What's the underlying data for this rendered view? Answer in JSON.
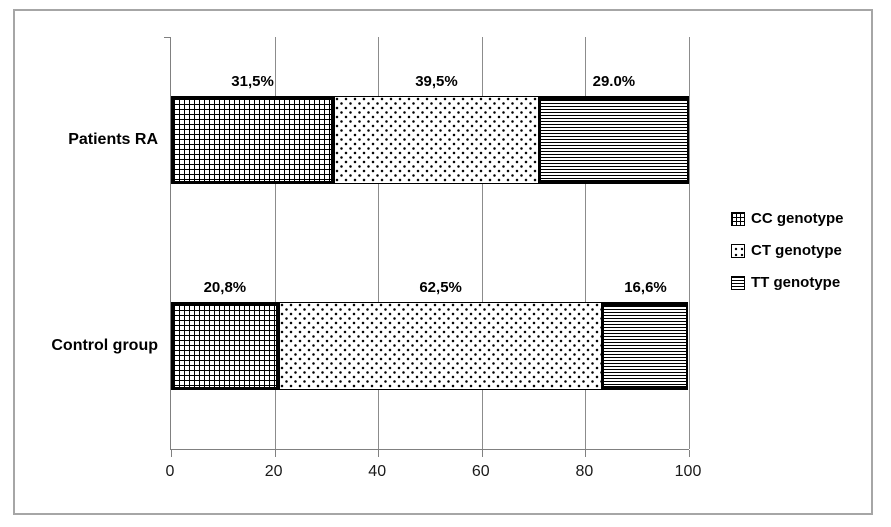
{
  "chart_data": {
    "type": "bar",
    "orientation": "horizontal",
    "stacked": true,
    "title": "",
    "xlabel": "",
    "ylabel": "",
    "categories": [
      "Patients RA",
      "Control group"
    ],
    "series": [
      {
        "name": "CC genotype",
        "pattern": "grid-crosshatch",
        "values": [
          31.5,
          20.8
        ],
        "labels": [
          "31,5%",
          "20,8%"
        ]
      },
      {
        "name": "CT genotype",
        "pattern": "dotted-diamond",
        "values": [
          39.5,
          62.5
        ],
        "labels": [
          "39,5%",
          "62,5%"
        ]
      },
      {
        "name": "TT genotype",
        "pattern": "horizontal-lines",
        "values": [
          29.0,
          16.6
        ],
        "labels": [
          "29.0%",
          "16,6%"
        ]
      }
    ],
    "xlim": [
      0,
      100
    ],
    "x_ticks": [
      "0",
      "20",
      "40",
      "60",
      "80",
      "100"
    ],
    "grid": true,
    "legend_position": "right"
  },
  "colors": {
    "background": "#ffffff",
    "pattern_foreground": "#000000",
    "gridline": "#8c8c8c",
    "axis": "#808080",
    "frame_border": "#a6a6a6",
    "label_text": "#000000"
  }
}
